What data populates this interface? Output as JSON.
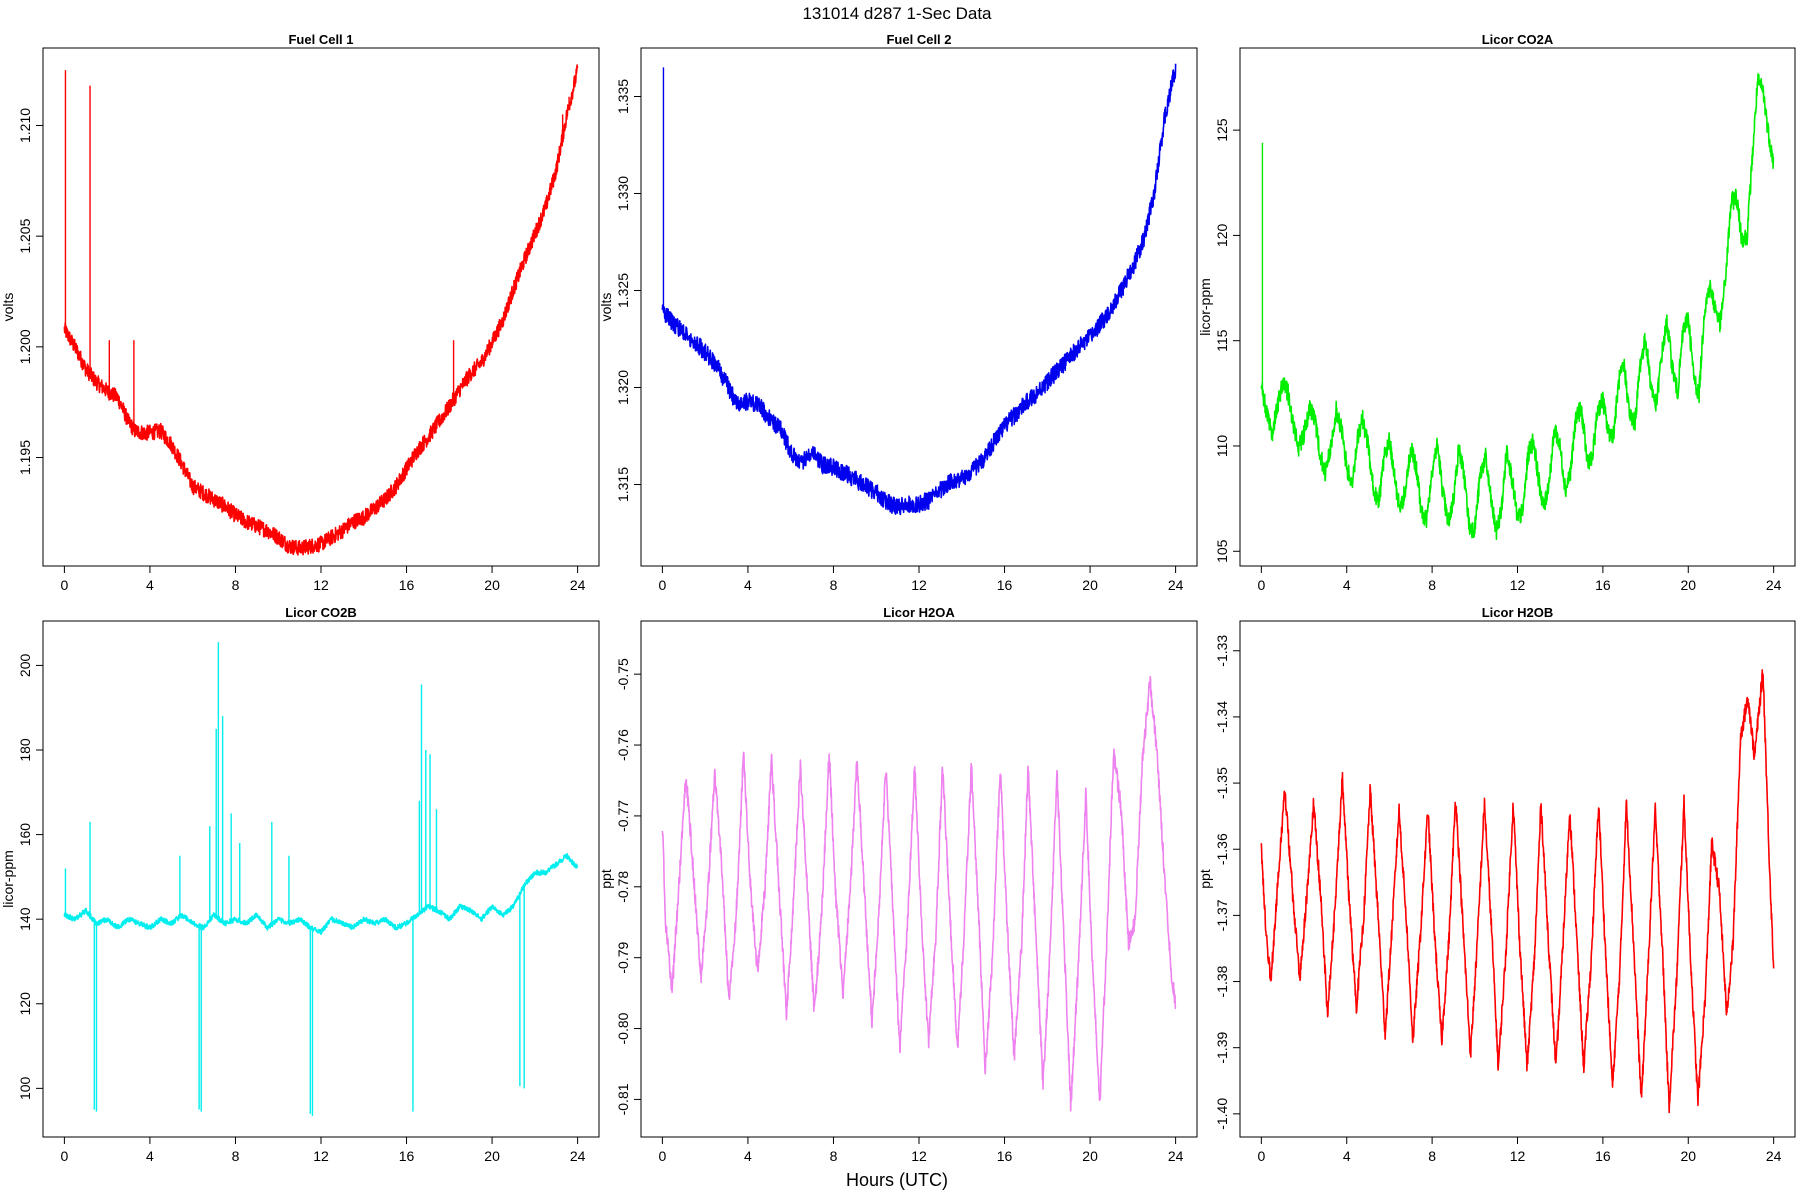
{
  "figure": {
    "title": "131014   d287   1-Sec Data",
    "xlabel": "Hours (UTC)"
  },
  "chart_data": [
    {
      "type": "line",
      "title": "Fuel Cell 1",
      "ylabel": "volts",
      "xlim": [
        -1,
        25
      ],
      "ylim": [
        1.1901,
        1.2135
      ],
      "xticks": [
        0,
        4,
        8,
        12,
        16,
        20,
        24
      ],
      "yticks": [
        1.195,
        1.2,
        1.205,
        1.21
      ],
      "ytick_labels": [
        "1.195",
        "1.200",
        "1.205",
        "1.210"
      ],
      "color": "#ff0000",
      "noise": 0.00035,
      "x": [
        0,
        0.3,
        0.6,
        1.0,
        1.5,
        2.0,
        2.5,
        3.0,
        3.3,
        3.8,
        4.5,
        5.0,
        5.5,
        6.0,
        6.5,
        7.0,
        7.5,
        8.0,
        8.5,
        9.0,
        9.5,
        10.0,
        10.5,
        11.0,
        11.5,
        12.0,
        12.5,
        13.0,
        13.5,
        14.0,
        14.5,
        15.0,
        15.5,
        16.0,
        16.5,
        17.0,
        17.5,
        18.0,
        18.5,
        19.0,
        19.5,
        20.0,
        20.5,
        21.0,
        21.5,
        22.0,
        22.5,
        23.0,
        23.5,
        24.0
      ],
      "y": [
        1.2008,
        1.2003,
        1.1998,
        1.199,
        1.1984,
        1.198,
        1.1977,
        1.1966,
        1.1962,
        1.1961,
        1.1962,
        1.1956,
        1.1947,
        1.1937,
        1.1934,
        1.1931,
        1.1928,
        1.1924,
        1.1921,
        1.1919,
        1.1917,
        1.1914,
        1.191,
        1.1909,
        1.191,
        1.1911,
        1.1914,
        1.1917,
        1.1921,
        1.1923,
        1.1927,
        1.1931,
        1.1937,
        1.1945,
        1.1953,
        1.1959,
        1.1966,
        1.1973,
        1.1981,
        1.1988,
        1.1993,
        1.2002,
        1.2012,
        1.2026,
        1.2039,
        1.2051,
        1.2063,
        1.208,
        1.2105,
        1.2125
      ],
      "spikes": [
        [
          0.05,
          1.2125
        ],
        [
          1.2,
          1.2118
        ],
        [
          2.1,
          1.2003
        ],
        [
          3.25,
          1.2003
        ],
        [
          18.2,
          1.2003
        ],
        [
          20.6,
          1.2012
        ],
        [
          23.3,
          1.2105
        ],
        [
          23.6,
          1.2113
        ]
      ]
    },
    {
      "type": "line",
      "title": "Fuel Cell 2",
      "ylabel": "volts",
      "xlim": [
        -1,
        25
      ],
      "ylim": [
        1.3108,
        1.3375
      ],
      "xticks": [
        0,
        4,
        8,
        12,
        16,
        20,
        24
      ],
      "yticks": [
        1.315,
        1.32,
        1.325,
        1.33,
        1.335
      ],
      "ytick_labels": [
        "1.315",
        "1.320",
        "1.325",
        "1.330",
        "1.335"
      ],
      "color": "#0000ee",
      "noise": 0.00045,
      "x": [
        0,
        0.3,
        0.6,
        1.0,
        1.5,
        2.0,
        2.5,
        3.0,
        3.5,
        4.0,
        4.5,
        5.0,
        5.5,
        6.0,
        6.5,
        7.0,
        7.5,
        8.0,
        8.5,
        9.0,
        9.5,
        10.0,
        10.5,
        11.0,
        11.5,
        12.0,
        12.5,
        13.0,
        13.5,
        14.0,
        14.5,
        15.0,
        15.5,
        16.0,
        16.5,
        17.0,
        17.5,
        18.0,
        18.5,
        19.0,
        19.5,
        20.0,
        20.5,
        21.0,
        21.5,
        22.0,
        22.5,
        23.0,
        23.5,
        24.0
      ],
      "y": [
        1.324,
        1.3236,
        1.3232,
        1.3228,
        1.3224,
        1.3218,
        1.3212,
        1.3202,
        1.3191,
        1.3193,
        1.3191,
        1.3184,
        1.3179,
        1.3167,
        1.3161,
        1.3168,
        1.316,
        1.3159,
        1.3156,
        1.3153,
        1.3149,
        1.3146,
        1.3141,
        1.3138,
        1.314,
        1.314,
        1.3142,
        1.3147,
        1.3152,
        1.3153,
        1.3157,
        1.3163,
        1.3172,
        1.318,
        1.3186,
        1.3192,
        1.3197,
        1.3203,
        1.3209,
        1.3215,
        1.3221,
        1.3226,
        1.3233,
        1.3241,
        1.3251,
        1.3262,
        1.3276,
        1.33,
        1.334,
        1.3365
      ],
      "spikes": [
        [
          0.05,
          1.3365
        ]
      ]
    },
    {
      "type": "line",
      "title": "Licor CO2A",
      "ylabel": "licor-ppm",
      "xlim": [
        -1,
        25
      ],
      "ylim": [
        104.3,
        128.9
      ],
      "xticks": [
        0,
        4,
        8,
        12,
        16,
        20,
        24
      ],
      "yticks": [
        105,
        110,
        115,
        120,
        125
      ],
      "ytick_labels": [
        "105",
        "110",
        "115",
        "120",
        "125"
      ],
      "color": "#00ee00",
      "noise": 0.45,
      "x": [
        0,
        0.25,
        0.5,
        0.75,
        1.0,
        1.25,
        1.5,
        1.75,
        2.0,
        2.25,
        2.5,
        2.75,
        3.0,
        3.25,
        3.5,
        3.75,
        4.0,
        4.25,
        4.5,
        4.75,
        5.0,
        5.25,
        5.5,
        5.75,
        6.0,
        6.25,
        6.5,
        6.75,
        7.0,
        7.25,
        7.5,
        7.75,
        8.0,
        8.25,
        8.5,
        8.75,
        9.0,
        9.25,
        9.5,
        9.75,
        10.0,
        10.25,
        10.5,
        10.75,
        11.0,
        11.25,
        11.5,
        11.75,
        12.0,
        12.25,
        12.5,
        12.75,
        13.0,
        13.25,
        13.5,
        13.75,
        14.0,
        14.25,
        14.5,
        14.75,
        15.0,
        15.25,
        15.5,
        15.75,
        16.0,
        16.25,
        16.5,
        16.75,
        17.0,
        17.25,
        17.5,
        17.75,
        18.0,
        18.25,
        18.5,
        18.75,
        19.0,
        19.25,
        19.5,
        19.75,
        20.0,
        20.25,
        20.5,
        20.75,
        21.0,
        21.25,
        21.5,
        21.75,
        22.0,
        22.25,
        22.5,
        22.75,
        23.0,
        23.25,
        23.5,
        23.75,
        24.0
      ],
      "y": [
        113.0,
        111.5,
        110.6,
        111.8,
        113.0,
        112.5,
        111.0,
        109.9,
        110.6,
        111.8,
        111.3,
        109.6,
        108.6,
        110.0,
        111.7,
        110.8,
        109.0,
        108.1,
        110.3,
        111.3,
        110.0,
        107.9,
        107.3,
        109.4,
        110.3,
        108.4,
        106.9,
        107.9,
        109.9,
        109.0,
        106.9,
        106.5,
        108.9,
        110.1,
        107.8,
        106.3,
        107.5,
        109.9,
        108.6,
        106.1,
        106.1,
        108.6,
        109.5,
        107.5,
        105.9,
        107.0,
        109.9,
        108.4,
        106.5,
        106.9,
        109.6,
        110.3,
        108.3,
        107.0,
        108.5,
        110.9,
        109.9,
        107.9,
        108.9,
        111.5,
        111.7,
        109.4,
        109.3,
        111.7,
        112.2,
        110.6,
        110.6,
        113.1,
        113.8,
        111.5,
        111.1,
        113.9,
        115.1,
        112.9,
        111.9,
        114.3,
        115.9,
        113.8,
        112.5,
        115.4,
        116.2,
        113.3,
        112.4,
        116.4,
        117.6,
        116.6,
        115.8,
        118.0,
        121.5,
        121.9,
        119.9,
        119.9,
        123.7,
        127.3,
        126.9,
        124.9,
        123.4
      ],
      "spikes": [
        [
          0.05,
          124.4
        ]
      ]
    },
    {
      "type": "line",
      "title": "Licor CO2B",
      "ylabel": "licor-ppm",
      "xlim": [
        -1,
        25
      ],
      "ylim": [
        88.5,
        210.5
      ],
      "xticks": [
        0,
        4,
        8,
        12,
        16,
        20,
        24
      ],
      "yticks": [
        100,
        120,
        140,
        160,
        180,
        200
      ],
      "ytick_labels": [
        "100",
        "120",
        "140",
        "160",
        "180",
        "200"
      ],
      "color": "#00eeee",
      "noise": 0.6,
      "x": [
        0,
        0.5,
        1.0,
        1.5,
        2.0,
        2.5,
        3.0,
        3.5,
        4.0,
        4.5,
        5.0,
        5.5,
        6.0,
        6.5,
        7.0,
        7.5,
        8.0,
        8.5,
        9.0,
        9.5,
        10.0,
        10.5,
        11.0,
        11.5,
        12.0,
        12.5,
        13.0,
        13.5,
        14.0,
        14.5,
        15.0,
        15.5,
        16.0,
        16.5,
        17.0,
        17.5,
        18.0,
        18.5,
        19.0,
        19.5,
        20.0,
        20.5,
        21.0,
        21.5,
        22.0,
        22.5,
        23.0,
        23.5,
        24.0
      ],
      "y": [
        141.0,
        140.0,
        142.0,
        139.0,
        140.0,
        138.0,
        140.0,
        139.0,
        138.0,
        140.0,
        139.0,
        141.0,
        139.0,
        138.0,
        141.0,
        139.0,
        140.0,
        139.0,
        141.0,
        138.0,
        140.0,
        139.0,
        140.0,
        138.0,
        137.0,
        140.0,
        139.0,
        138.0,
        140.0,
        139.0,
        140.0,
        138.0,
        139.0,
        141.0,
        143.0,
        142.0,
        140.0,
        143.0,
        142.0,
        140.0,
        143.0,
        141.0,
        143.0,
        148.0,
        151.0,
        151.0,
        153.0,
        155.0,
        152.0
      ],
      "spikes": [
        [
          0.05,
          152.0
        ],
        [
          1.2,
          163.0
        ],
        [
          1.4,
          95.0
        ],
        [
          1.5,
          94.5
        ],
        [
          5.4,
          155.0
        ],
        [
          6.3,
          95.0
        ],
        [
          6.4,
          94.5
        ],
        [
          6.8,
          162.0
        ],
        [
          7.1,
          185.0
        ],
        [
          7.2,
          205.5
        ],
        [
          7.4,
          188.0
        ],
        [
          7.8,
          165.0
        ],
        [
          8.2,
          158.0
        ],
        [
          9.7,
          163.0
        ],
        [
          10.5,
          155.0
        ],
        [
          11.5,
          94.0
        ],
        [
          11.6,
          93.5
        ],
        [
          16.3,
          94.5
        ],
        [
          16.6,
          168.0
        ],
        [
          16.7,
          195.5
        ],
        [
          16.9,
          180.0
        ],
        [
          17.1,
          179.0
        ],
        [
          17.4,
          166.0
        ],
        [
          21.3,
          100.5
        ],
        [
          21.5,
          100.0
        ]
      ]
    },
    {
      "type": "line",
      "title": "Licor H2OA",
      "ylabel": "ppt",
      "xlim": [
        -1,
        25
      ],
      "ylim": [
        -0.8153,
        -0.7425
      ],
      "xticks": [
        0,
        4,
        8,
        12,
        16,
        20,
        24
      ],
      "yticks": [
        -0.81,
        -0.8,
        -0.79,
        -0.78,
        -0.77,
        -0.76,
        -0.75
      ],
      "ytick_labels": [
        "-0.81",
        "-0.80",
        "-0.79",
        "-0.78",
        "-0.77",
        "-0.76",
        "-0.75"
      ],
      "color": "#ee82ee",
      "noise": 0.0012,
      "x": [
        0,
        0.15,
        0.45,
        0.75,
        1.1,
        1.45,
        1.8,
        2.1,
        2.45,
        2.8,
        3.1,
        3.45,
        3.8,
        4.1,
        4.45,
        4.8,
        5.1,
        5.45,
        5.8,
        6.1,
        6.45,
        6.8,
        7.1,
        7.45,
        7.8,
        8.1,
        8.45,
        8.8,
        9.1,
        9.45,
        9.8,
        10.1,
        10.45,
        10.8,
        11.1,
        11.45,
        11.8,
        12.1,
        12.45,
        12.8,
        13.1,
        13.45,
        13.8,
        14.1,
        14.45,
        14.8,
        15.1,
        15.45,
        15.8,
        16.1,
        16.45,
        16.8,
        17.1,
        17.45,
        17.8,
        18.1,
        18.45,
        18.8,
        19.1,
        19.45,
        19.8,
        20.1,
        20.45,
        20.8,
        21.1,
        21.45,
        21.8,
        22.1,
        22.45,
        22.8,
        23.1,
        23.5,
        23.8,
        24.0
      ],
      "y": [
        -0.771,
        -0.785,
        -0.795,
        -0.781,
        -0.764,
        -0.778,
        -0.793,
        -0.782,
        -0.764,
        -0.778,
        -0.796,
        -0.784,
        -0.761,
        -0.779,
        -0.792,
        -0.78,
        -0.762,
        -0.78,
        -0.798,
        -0.784,
        -0.763,
        -0.781,
        -0.798,
        -0.784,
        -0.761,
        -0.781,
        -0.795,
        -0.78,
        -0.762,
        -0.781,
        -0.799,
        -0.785,
        -0.763,
        -0.784,
        -0.803,
        -0.786,
        -0.763,
        -0.784,
        -0.802,
        -0.786,
        -0.763,
        -0.784,
        -0.803,
        -0.787,
        -0.763,
        -0.785,
        -0.806,
        -0.789,
        -0.763,
        -0.784,
        -0.804,
        -0.788,
        -0.763,
        -0.786,
        -0.808,
        -0.791,
        -0.764,
        -0.789,
        -0.811,
        -0.791,
        -0.767,
        -0.79,
        -0.811,
        -0.786,
        -0.761,
        -0.769,
        -0.788,
        -0.785,
        -0.762,
        -0.751,
        -0.76,
        -0.779,
        -0.792,
        -0.797
      ],
      "spikes": []
    },
    {
      "type": "line",
      "title": "Licor H2OB",
      "ylabel": "ppt",
      "xlim": [
        -1,
        25
      ],
      "ylim": [
        -1.4035,
        -1.3255
      ],
      "xticks": [
        0,
        4,
        8,
        12,
        16,
        20,
        24
      ],
      "yticks": [
        -1.4,
        -1.39,
        -1.38,
        -1.37,
        -1.36,
        -1.35,
        -1.34,
        -1.33
      ],
      "ytick_labels": [
        "-1.40",
        "-1.39",
        "-1.38",
        "-1.37",
        "-1.36",
        "-1.35",
        "-1.34",
        "-1.33"
      ],
      "color": "#ff0000",
      "noise": 0.0012,
      "x": [
        0,
        0.2,
        0.45,
        0.75,
        1.1,
        1.45,
        1.8,
        2.1,
        2.45,
        2.8,
        3.1,
        3.45,
        3.8,
        4.1,
        4.45,
        4.8,
        5.1,
        5.45,
        5.8,
        6.1,
        6.45,
        6.8,
        7.1,
        7.45,
        7.8,
        8.1,
        8.45,
        8.8,
        9.1,
        9.45,
        9.8,
        10.1,
        10.45,
        10.8,
        11.1,
        11.45,
        11.8,
        12.1,
        12.45,
        12.8,
        13.1,
        13.45,
        13.8,
        14.1,
        14.45,
        14.8,
        15.1,
        15.45,
        15.8,
        16.1,
        16.45,
        16.8,
        17.1,
        17.45,
        17.8,
        18.1,
        18.45,
        18.8,
        19.1,
        19.45,
        19.8,
        20.1,
        20.45,
        20.8,
        21.1,
        21.45,
        21.8,
        22.1,
        22.45,
        22.8,
        23.1,
        23.5,
        23.8,
        24.0
      ],
      "y": [
        -1.36,
        -1.372,
        -1.38,
        -1.366,
        -1.351,
        -1.366,
        -1.38,
        -1.368,
        -1.353,
        -1.368,
        -1.385,
        -1.369,
        -1.349,
        -1.367,
        -1.384,
        -1.37,
        -1.351,
        -1.369,
        -1.388,
        -1.373,
        -1.354,
        -1.371,
        -1.389,
        -1.373,
        -1.354,
        -1.372,
        -1.389,
        -1.373,
        -1.352,
        -1.372,
        -1.391,
        -1.375,
        -1.353,
        -1.373,
        -1.393,
        -1.376,
        -1.353,
        -1.374,
        -1.393,
        -1.376,
        -1.353,
        -1.374,
        -1.393,
        -1.376,
        -1.354,
        -1.375,
        -1.393,
        -1.377,
        -1.353,
        -1.374,
        -1.396,
        -1.378,
        -1.353,
        -1.375,
        -1.398,
        -1.379,
        -1.354,
        -1.376,
        -1.399,
        -1.38,
        -1.353,
        -1.376,
        -1.398,
        -1.382,
        -1.359,
        -1.366,
        -1.385,
        -1.374,
        -1.343,
        -1.337,
        -1.346,
        -1.333,
        -1.362,
        -1.378
      ],
      "spikes": []
    }
  ]
}
